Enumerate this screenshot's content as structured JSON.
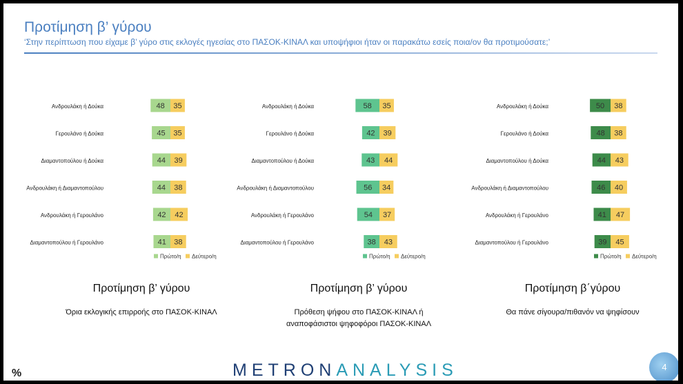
{
  "header": {
    "title": "Προτίμηση β’ γύρου",
    "subtitle": "‘Στην περίπτωση που είχαμε β’ γύρο στις εκλογές ηγεσίας στο ΠΑΣΟΚ-ΚΙΝΑΛ και υποψήφιοι ήταν οι παρακάτω εσείς ποια/ον θα προτιμούσατε;’"
  },
  "colors": {
    "accent": "#4a7fc0",
    "second": "#f6cd5f",
    "first_panel1": "#a8d78e",
    "first_panel2": "#5ec48f",
    "first_panel3": "#3d8b4a"
  },
  "chart_data": [
    {
      "type": "bar",
      "stacked_horizontal": true,
      "categories": [
        "Ανδρουλάκη ή Δούκα",
        "Γερουλάνο ή Δούκα",
        "Διαμαντοπούλου ή Δούκα",
        "Ανδρουλάκη ή Διαμαντοπούλου",
        "Ανδρουλάκη ή Γερουλάνο",
        "Διαμαντοπούλου ή Γερουλάνο"
      ],
      "series": [
        {
          "name": "Πρώτο/η",
          "values": [
            48,
            45,
            44,
            44,
            42,
            41
          ]
        },
        {
          "name": "Δεύτερο/η",
          "values": [
            35,
            35,
            39,
            38,
            42,
            38
          ]
        }
      ],
      "title": "Προτίμηση β’ γύρου",
      "description": "Όρια εκλογικής επιρροής στο ΠΑΣΟΚ-ΚΙΝΑΛ",
      "legend": "bottom"
    },
    {
      "type": "bar",
      "stacked_horizontal": true,
      "categories": [
        "Ανδρουλάκη ή Δούκα",
        "Γερουλάνο ή Δούκα",
        "Διαμαντοπούλου ή Δούκα",
        "Ανδρουλάκη ή Διαμαντοπούλου",
        "Ανδρουλάκη ή Γερουλάνο",
        "Διαμαντοπούλου ή Γερουλάνο"
      ],
      "series": [
        {
          "name": "Πρώτο/η",
          "values": [
            58,
            42,
            43,
            56,
            54,
            38
          ]
        },
        {
          "name": "Δεύτερο/η",
          "values": [
            35,
            39,
            44,
            34,
            37,
            43
          ]
        }
      ],
      "title": "Προτίμηση β’ γύρου",
      "description": "Πρόθεση ψήφου στο ΠΑΣΟΚ-ΚΙΝΑΛ ή αναποφάσιστοι ψηφοφόροι ΠΑΣΟΚ-ΚΙΝΑΛ",
      "legend": "bottom"
    },
    {
      "type": "bar",
      "stacked_horizontal": true,
      "categories": [
        "Ανδρουλάκη ή Δούκα",
        "Γερουλάνο ή Δούκα",
        "Διαμαντοπούλου ή Δούκα",
        "Ανδρουλάκη ή Διαμαντοπούλου",
        "Ανδρουλάκη ή Γερουλάνο",
        "Διαμαντοπούλου ή Γερουλάνο"
      ],
      "series": [
        {
          "name": "Πρώτο/η",
          "values": [
            50,
            48,
            44,
            46,
            41,
            39
          ]
        },
        {
          "name": "Δεύτερο/η",
          "values": [
            38,
            38,
            43,
            40,
            47,
            45
          ]
        }
      ],
      "title": "Προτίμηση β΄γύρου",
      "description": "Θα πάνε σίγουρα/πιθανόν να ψηφίσουν",
      "legend": "bottom"
    }
  ],
  "footer": {
    "logo_part1": "METRON",
    "logo_part2": "ANALYSIS",
    "unit": "%",
    "page_number": "4"
  }
}
